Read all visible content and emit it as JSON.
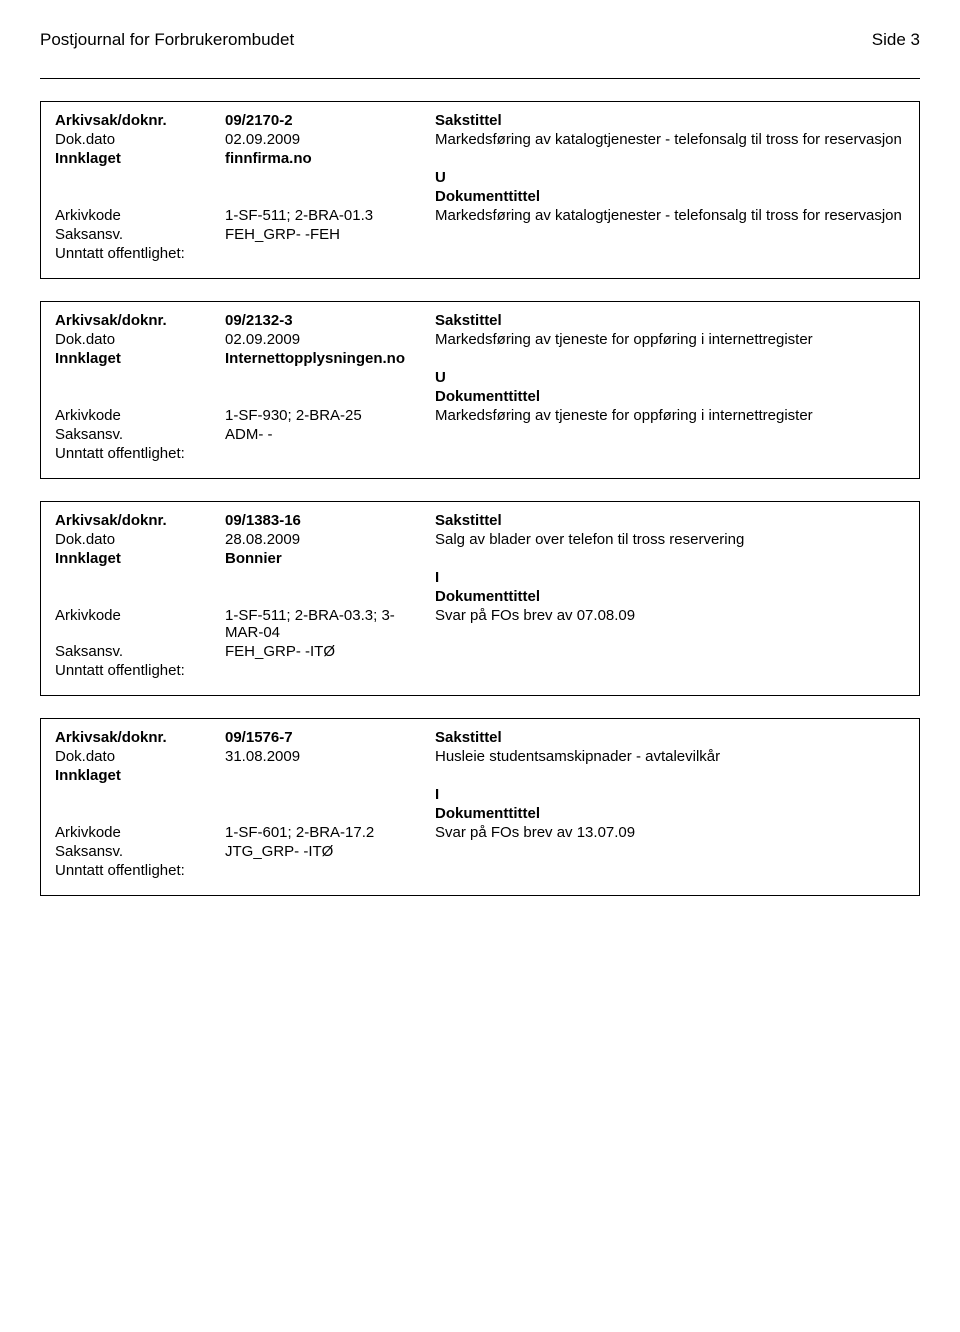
{
  "header": {
    "title": "Postjournal for Forbrukerombudet",
    "page_label": "Side 3"
  },
  "labels": {
    "arkivsak": "Arkivsak/doknr.",
    "sakstittel": "Sakstittel",
    "dokdato": "Dok.dato",
    "innklaget": "Innklaget",
    "dokumenttittel": "Dokumenttittel",
    "arkivkode": "Arkivkode",
    "saksansv": "Saksansv.",
    "unntatt": "Unntatt offentlighet:"
  },
  "records": [
    {
      "arkivsak": "09/2170-2",
      "dokdato": "02.09.2009",
      "sakstittel": "Markedsføring av katalogtjenester - telefonsalg til tross for reservasjon",
      "innklaget": "finnfirma.no",
      "direction": "U",
      "arkivkode": "1-SF-511; 2-BRA-01.3",
      "doktittel": "Markedsføring av katalogtjenester - telefonsalg til tross for reservasjon",
      "saksansv": "FEH_GRP- -FEH"
    },
    {
      "arkivsak": "09/2132-3",
      "dokdato": "02.09.2009",
      "sakstittel": "Markedsføring av tjeneste for oppføring i internettregister",
      "innklaget": "Internettopplysningen.no",
      "direction": "U",
      "arkivkode": "1-SF-930; 2-BRA-25",
      "doktittel": "Markedsføring av tjeneste for oppføring i internettregister",
      "saksansv": "ADM- -"
    },
    {
      "arkivsak": "09/1383-16",
      "dokdato": "28.08.2009",
      "sakstittel": "Salg av blader over telefon til tross reservering",
      "innklaget": "Bonnier",
      "direction": "I",
      "arkivkode": "1-SF-511; 2-BRA-03.3; 3-MAR-04",
      "doktittel": "Svar på FOs brev av 07.08.09",
      "saksansv": "FEH_GRP- -ITØ"
    },
    {
      "arkivsak": "09/1576-7",
      "dokdato": "31.08.2009",
      "sakstittel": "Husleie studentsamskipnader  - avtalevilkår",
      "innklaget": "",
      "direction": "I",
      "arkivkode": "1-SF-601; 2-BRA-17.2",
      "doktittel": "Svar på FOs brev av 13.07.09",
      "saksansv": "JTG_GRP- -ITØ"
    }
  ]
}
